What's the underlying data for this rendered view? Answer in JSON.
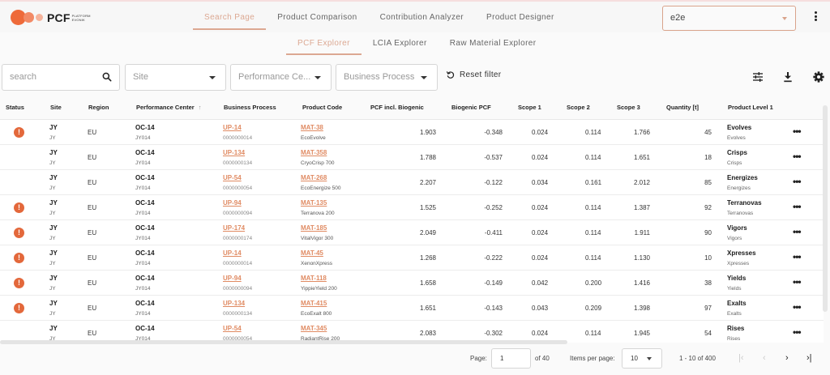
{
  "app": {
    "brand": "PCF",
    "brand_sub1": "PLATFORM",
    "brand_sub2": "EVONIK"
  },
  "main_nav": {
    "tabs": [
      {
        "label": "Search Page",
        "active": true
      },
      {
        "label": "Product Comparison",
        "active": false
      },
      {
        "label": "Contribution Analyzer",
        "active": false
      },
      {
        "label": "Product Designer",
        "active": false
      }
    ]
  },
  "environment_select": {
    "value": "e2e"
  },
  "sub_nav": {
    "tabs": [
      {
        "label": "PCF Explorer",
        "active": true
      },
      {
        "label": "LCIA Explorer",
        "active": false
      },
      {
        "label": "Raw Material Explorer",
        "active": false
      }
    ]
  },
  "filters": {
    "search_placeholder": "search",
    "site_placeholder": "Site",
    "performance_center_placeholder": "Performance Ce...",
    "business_process_placeholder": "Business Process",
    "reset_label": "Reset filter"
  },
  "toolbar": {
    "icons": [
      "tune-icon",
      "download-icon",
      "gear-icon"
    ]
  },
  "colors": {
    "accent": "#dca892",
    "link": "#e08b63",
    "warning": "#e3683b"
  },
  "table": {
    "columns": [
      "Status",
      "Site",
      "Region",
      "Performance Center",
      "Business Process",
      "Product Code",
      "PCF incl. Biogenic",
      "Biogenic PCF",
      "Scope 1",
      "Scope 2",
      "Scope 3",
      "Quantity [t]",
      "Product Level 1"
    ],
    "sort": {
      "column": "Performance Center",
      "direction": "ascending"
    },
    "rows": [
      {
        "warning": true,
        "site": "JY",
        "site_sub": "JY",
        "region": "EU",
        "pc": "OC-14",
        "pc_sub": "JY014",
        "bp": "UP-14",
        "bp_sub": "0000000014",
        "code": "MAT-38",
        "code_sub": "EcoEvolve",
        "pcf": "1.903",
        "bio": "-0.348",
        "s1": "0.024",
        "s2": "0.114",
        "s3": "1.766",
        "qty": "45",
        "lvl": "Evolves",
        "lvl_sub": "Evolves"
      },
      {
        "warning": false,
        "site": "JY",
        "site_sub": "JY",
        "region": "EU",
        "pc": "OC-14",
        "pc_sub": "JY014",
        "bp": "UP-134",
        "bp_sub": "0000000134",
        "code": "MAT-358",
        "code_sub": "CryoCrisp 700",
        "pcf": "1.788",
        "bio": "-0.537",
        "s1": "0.024",
        "s2": "0.114",
        "s3": "1.651",
        "qty": "18",
        "lvl": "Crisps",
        "lvl_sub": "Crisps"
      },
      {
        "warning": false,
        "site": "JY",
        "site_sub": "JY",
        "region": "EU",
        "pc": "OC-14",
        "pc_sub": "JY014",
        "bp": "UP-54",
        "bp_sub": "0000000054",
        "code": "MAT-268",
        "code_sub": "EcoEnergize 500",
        "pcf": "2.207",
        "bio": "-0.122",
        "s1": "0.034",
        "s2": "0.161",
        "s3": "2.012",
        "qty": "85",
        "lvl": "Energizes",
        "lvl_sub": "Energizes"
      },
      {
        "warning": true,
        "site": "JY",
        "site_sub": "JY",
        "region": "EU",
        "pc": "OC-14",
        "pc_sub": "JY014",
        "bp": "UP-94",
        "bp_sub": "0000000094",
        "code": "MAT-135",
        "code_sub": "Terranova 200",
        "pcf": "1.525",
        "bio": "-0.252",
        "s1": "0.024",
        "s2": "0.114",
        "s3": "1.387",
        "qty": "92",
        "lvl": "Terranovas",
        "lvl_sub": "Terranovas"
      },
      {
        "warning": true,
        "site": "JY",
        "site_sub": "JY",
        "region": "EU",
        "pc": "OC-14",
        "pc_sub": "JY014",
        "bp": "UP-174",
        "bp_sub": "0000000174",
        "code": "MAT-185",
        "code_sub": "VitalVigor 300",
        "pcf": "2.049",
        "bio": "-0.411",
        "s1": "0.024",
        "s2": "0.114",
        "s3": "1.911",
        "qty": "90",
        "lvl": "Vigors",
        "lvl_sub": "Vigors"
      },
      {
        "warning": true,
        "site": "JY",
        "site_sub": "JY",
        "region": "EU",
        "pc": "OC-14",
        "pc_sub": "JY014",
        "bp": "UP-14",
        "bp_sub": "0000000014",
        "code": "MAT-45",
        "code_sub": "XenonXpress",
        "pcf": "1.268",
        "bio": "-0.222",
        "s1": "0.024",
        "s2": "0.114",
        "s3": "1.130",
        "qty": "10",
        "lvl": "Xpresses",
        "lvl_sub": "Xpresses"
      },
      {
        "warning": true,
        "site": "JY",
        "site_sub": "JY",
        "region": "EU",
        "pc": "OC-14",
        "pc_sub": "JY014",
        "bp": "UP-94",
        "bp_sub": "0000000094",
        "code": "MAT-118",
        "code_sub": "YippieYield 200",
        "pcf": "1.658",
        "bio": "-0.149",
        "s1": "0.042",
        "s2": "0.200",
        "s3": "1.416",
        "qty": "38",
        "lvl": "Yields",
        "lvl_sub": "Yields"
      },
      {
        "warning": true,
        "site": "JY",
        "site_sub": "JY",
        "region": "EU",
        "pc": "OC-14",
        "pc_sub": "JY014",
        "bp": "UP-134",
        "bp_sub": "0000000134",
        "code": "MAT-415",
        "code_sub": "EcoExalt 800",
        "pcf": "1.651",
        "bio": "-0.143",
        "s1": "0.043",
        "s2": "0.209",
        "s3": "1.398",
        "qty": "97",
        "lvl": "Exalts",
        "lvl_sub": "Exalts"
      },
      {
        "warning": false,
        "site": "JY",
        "site_sub": "JY",
        "region": "EU",
        "pc": "OC-14",
        "pc_sub": "JY014",
        "bp": "UP-54",
        "bp_sub": "0000000054",
        "code": "MAT-345",
        "code_sub": "RadiantRise 200",
        "pcf": "2.083",
        "bio": "-0.302",
        "s1": "0.024",
        "s2": "0.114",
        "s3": "1.945",
        "qty": "54",
        "lvl": "Rises",
        "lvl_sub": "Rises"
      }
    ]
  },
  "pagination": {
    "page_label": "Page:",
    "page_value": "1",
    "of_pages": "of 40",
    "items_per_page_label": "Items per page:",
    "items_per_page_value": "10",
    "range": "1 - 10 of 400"
  }
}
